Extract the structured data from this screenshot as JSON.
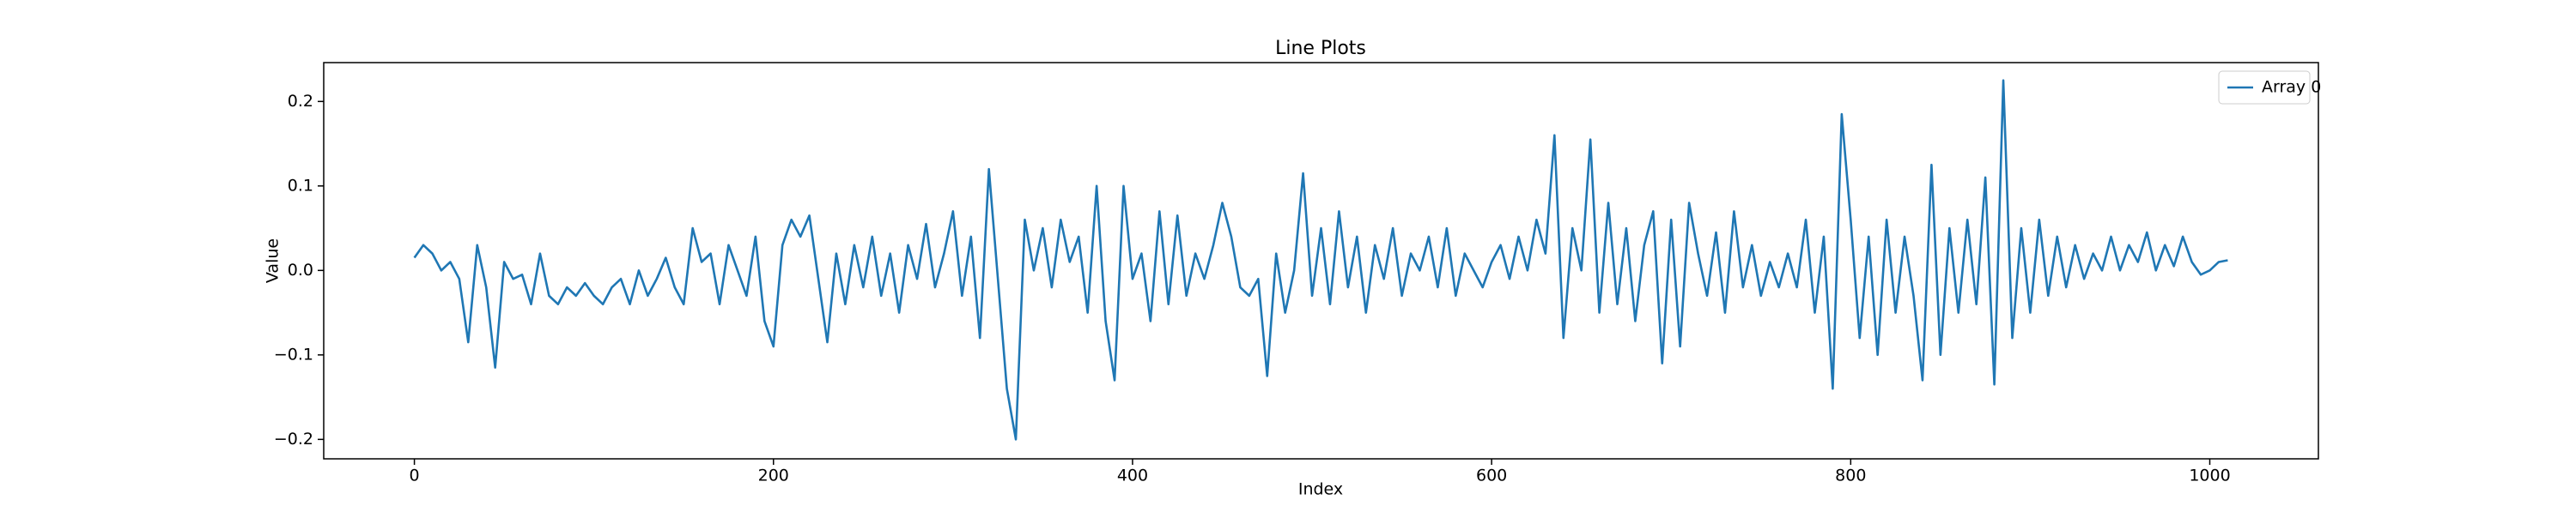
{
  "chart_data": {
    "type": "line",
    "title": "Line Plots",
    "x_label": "Index",
    "y_label": "Value",
    "x": [
      0,
      5,
      10,
      15,
      20,
      25,
      30,
      35,
      40,
      45,
      50,
      55,
      60,
      65,
      70,
      75,
      80,
      85,
      90,
      95,
      100,
      105,
      110,
      115,
      120,
      125,
      130,
      135,
      140,
      145,
      150,
      155,
      160,
      165,
      170,
      175,
      180,
      185,
      190,
      195,
      200,
      205,
      210,
      215,
      220,
      225,
      230,
      235,
      240,
      245,
      250,
      255,
      260,
      265,
      270,
      275,
      280,
      285,
      290,
      295,
      300,
      305,
      310,
      315,
      320,
      325,
      330,
      335,
      340,
      345,
      350,
      355,
      360,
      365,
      370,
      375,
      380,
      385,
      390,
      395,
      400,
      405,
      410,
      415,
      420,
      425,
      430,
      435,
      440,
      445,
      450,
      455,
      460,
      465,
      470,
      475,
      480,
      485,
      490,
      495,
      500,
      505,
      510,
      515,
      520,
      525,
      530,
      535,
      540,
      545,
      550,
      555,
      560,
      565,
      570,
      575,
      580,
      585,
      590,
      595,
      600,
      605,
      610,
      615,
      620,
      625,
      630,
      635,
      640,
      645,
      650,
      655,
      660,
      665,
      670,
      675,
      680,
      685,
      690,
      695,
      700,
      705,
      710,
      715,
      720,
      725,
      730,
      735,
      740,
      745,
      750,
      755,
      760,
      765,
      770,
      775,
      780,
      785,
      790,
      795,
      800,
      805,
      810,
      815,
      820,
      825,
      830,
      835,
      840,
      845,
      850,
      855,
      860,
      865,
      870,
      875,
      880,
      885,
      890,
      895,
      900,
      905,
      910,
      915,
      920,
      925,
      930,
      935,
      940,
      945,
      950,
      955,
      960,
      965,
      970,
      975,
      980,
      985,
      990,
      995,
      1000,
      1005,
      1010
    ],
    "series": [
      {
        "name": "Array 0",
        "color": "#1f77b4",
        "values": [
          0.015,
          0.03,
          0.02,
          0.0,
          0.01,
          -0.01,
          -0.085,
          0.03,
          -0.02,
          -0.115,
          0.01,
          -0.01,
          -0.005,
          -0.04,
          0.02,
          -0.03,
          -0.04,
          -0.02,
          -0.03,
          -0.015,
          -0.03,
          -0.04,
          -0.02,
          -0.01,
          -0.04,
          0.0,
          -0.03,
          -0.01,
          0.015,
          -0.02,
          -0.04,
          0.05,
          0.01,
          0.02,
          -0.04,
          0.03,
          0.0,
          -0.03,
          0.04,
          -0.06,
          -0.09,
          0.03,
          0.06,
          0.04,
          0.065,
          -0.01,
          -0.085,
          0.02,
          -0.04,
          0.03,
          -0.02,
          0.04,
          -0.03,
          0.02,
          -0.05,
          0.03,
          -0.01,
          0.055,
          -0.02,
          0.02,
          0.07,
          -0.03,
          0.04,
          -0.08,
          0.12,
          -0.01,
          -0.14,
          -0.2,
          0.06,
          0.0,
          0.05,
          -0.02,
          0.06,
          0.01,
          0.04,
          -0.05,
          0.1,
          -0.06,
          -0.13,
          0.1,
          -0.01,
          0.02,
          -0.06,
          0.07,
          -0.04,
          0.065,
          -0.03,
          0.02,
          -0.01,
          0.03,
          0.08,
          0.04,
          -0.02,
          -0.03,
          -0.01,
          -0.125,
          0.02,
          -0.05,
          0.0,
          0.115,
          -0.03,
          0.05,
          -0.04,
          0.07,
          -0.02,
          0.04,
          -0.05,
          0.03,
          -0.01,
          0.05,
          -0.03,
          0.02,
          0.0,
          0.04,
          -0.02,
          0.05,
          -0.03,
          0.02,
          0.0,
          -0.02,
          0.01,
          0.03,
          -0.01,
          0.04,
          0.0,
          0.06,
          0.02,
          0.16,
          -0.08,
          0.05,
          0.0,
          0.155,
          -0.05,
          0.08,
          -0.04,
          0.05,
          -0.06,
          0.03,
          0.07,
          -0.11,
          0.06,
          -0.09,
          0.08,
          0.02,
          -0.03,
          0.045,
          -0.05,
          0.07,
          -0.02,
          0.03,
          -0.03,
          0.01,
          -0.02,
          0.02,
          -0.02,
          0.06,
          -0.05,
          0.04,
          -0.14,
          0.185,
          0.06,
          -0.08,
          0.04,
          -0.1,
          0.06,
          -0.05,
          0.04,
          -0.03,
          -0.13,
          0.125,
          -0.1,
          0.05,
          -0.05,
          0.06,
          -0.04,
          0.11,
          -0.135,
          0.225,
          -0.08,
          0.05,
          -0.05,
          0.06,
          -0.03,
          0.04,
          -0.02,
          0.03,
          -0.01,
          0.02,
          0.0,
          0.04,
          0.0,
          0.03,
          0.01,
          0.045,
          0.0,
          0.03,
          0.005,
          0.04,
          0.01,
          -0.005,
          0.0,
          0.01,
          0.012
        ]
      }
    ],
    "xlim": [
      -50.5,
      1060.5
    ],
    "xticks": [
      0,
      200,
      400,
      600,
      800,
      1000
    ],
    "ylim": [
      -0.223,
      0.246
    ],
    "yticks": [
      {
        "value": -0.2,
        "label": "−0.2"
      },
      {
        "value": -0.1,
        "label": "−0.1"
      },
      {
        "value": 0,
        "label": "0.0"
      },
      {
        "value": 0.1,
        "label": "0.1"
      },
      {
        "value": 0.2,
        "label": "0.2"
      }
    ],
    "legend": "upper right",
    "grid": false
  }
}
